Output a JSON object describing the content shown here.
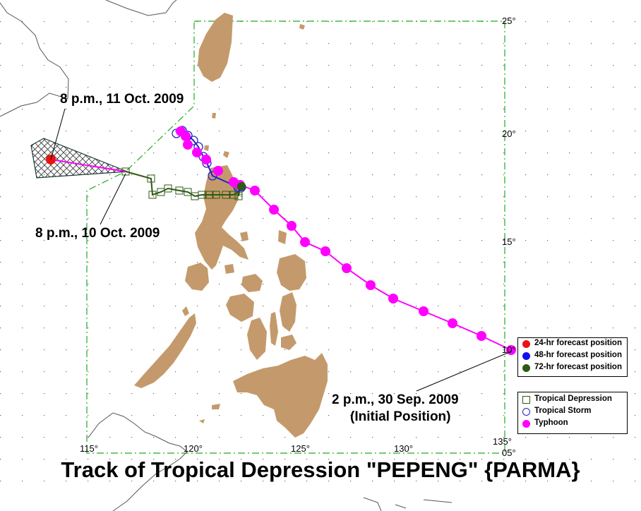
{
  "title": "Track of Tropical Depression \"PEPENG\" {PARMA}",
  "annotations": {
    "forecast_end": "8 p.m., 11 Oct. 2009",
    "mid_point": "8 p.m., 10 Oct. 2009",
    "initial_line1": "2 p.m., 30 Sep. 2009",
    "initial_line2": "(Initial Position)"
  },
  "grid_labels": {
    "lat_25": "25°",
    "lat_20": "20°",
    "lat_15": "15°",
    "lat_10": "10°",
    "lat_05": "05°",
    "lon_115": "115°",
    "lon_120": "120°",
    "lon_125": "125°",
    "lon_130": "130°",
    "lon_135": "135°"
  },
  "legend_forecast": [
    {
      "label": "24-hr forecast position",
      "color": "#ee1111"
    },
    {
      "label": "48-hr forecast position",
      "color": "#1111ee"
    },
    {
      "label": "72-hr forecast position",
      "color": "#2d5a14"
    }
  ],
  "legend_intensity": [
    {
      "label": "Tropical Depression",
      "symbol": "square-icon"
    },
    {
      "label": "Tropical Storm",
      "symbol": "circle-icon"
    },
    {
      "label": "Typhoon",
      "symbol": "filled-dot-icon"
    }
  ],
  "colors": {
    "land": "#c49a6c",
    "typhoon": "#ff00ff",
    "storm": "#2222cc",
    "depression": "#2d5a14",
    "forecast_24": "#ee1111",
    "par_boundary": "#22aa22",
    "grid_dots": "#666666"
  }
}
